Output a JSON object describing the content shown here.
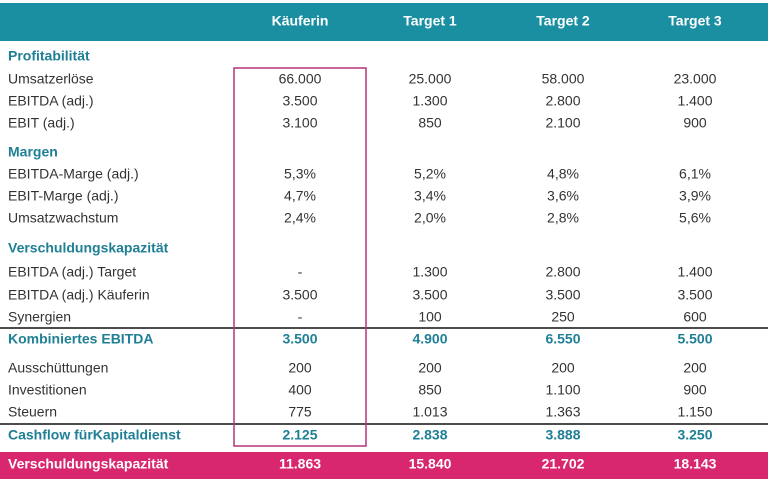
{
  "table": {
    "columns": [
      "Käuferin",
      "Target 1",
      "Target 2",
      "Target 3"
    ],
    "rows": [
      [
        "Profitabilität"
      ],
      [
        "Umsatzerlöse",
        "66.000",
        "25.000",
        "58.000",
        "23.000"
      ],
      [
        "EBITDA (adj.)",
        "3.500",
        "1.300",
        "2.800",
        "1.400"
      ],
      [
        "EBIT (adj.)",
        "3.100",
        "850",
        "2.100",
        "900"
      ],
      [
        "Margen"
      ],
      [
        "EBITDA-Marge (adj.)",
        "5,3%",
        "5,2%",
        "4,8%",
        "6,1%"
      ],
      [
        "EBIT-Marge (adj.)",
        "4,7%",
        "3,4%",
        "3,6%",
        "3,9%"
      ],
      [
        "Umsatzwachstum",
        "2,4%",
        "2,0%",
        "2,8%",
        "5,6%"
      ],
      [
        "Verschuldungskapazität"
      ],
      [
        "EBITDA (adj.) Target",
        "-",
        "1.300",
        "2.800",
        "1.400"
      ],
      [
        "EBITDA (adj.) Käuferin",
        "3.500",
        "3.500",
        "3.500",
        "3.500"
      ],
      [
        "Synergien",
        "-",
        "100",
        "250",
        "600"
      ],
      [
        "Kombiniertes EBITDA",
        "3.500",
        "4.900",
        "6.550",
        "5.500"
      ],
      [
        "Ausschüttungen",
        "200",
        "200",
        "200",
        "200"
      ],
      [
        "Investitionen",
        "400",
        "850",
        "1.100",
        "900"
      ],
      [
        "Steuern",
        "775",
        "1.013",
        "1.363",
        "1.150"
      ],
      [
        "Cashflow fürKapitaldienst",
        "2.125",
        "2.838",
        "3.888",
        "3.250"
      ],
      [
        "Verschuldungskapazität",
        "11.863",
        "15.840",
        "21.702",
        "18.143"
      ]
    ]
  }
}
